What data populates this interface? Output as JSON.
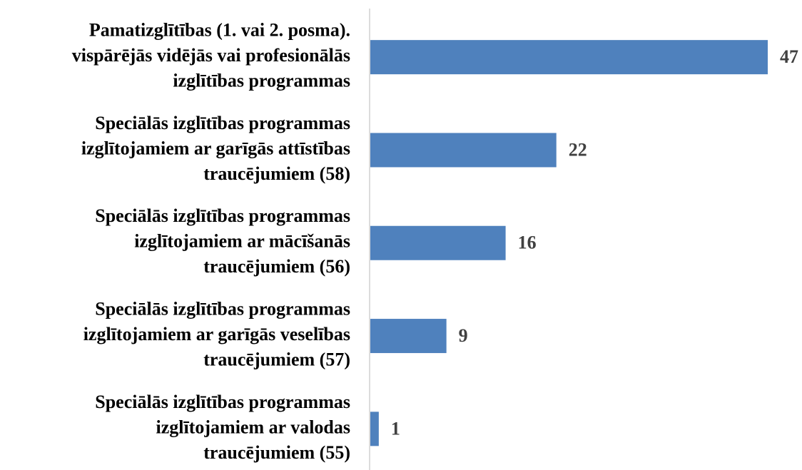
{
  "chart_data": {
    "type": "bar",
    "orientation": "horizontal",
    "categories": [
      [
        "Pamatizglītības (1. vai 2. posma).",
        "vispārējās vidējās vai profesionālās",
        "izglītības programmas"
      ],
      [
        "Speciālās izglītības programmas",
        "izglītojamiem ar garīgās attīstības",
        "traucējumiem (58)"
      ],
      [
        "Speciālās izglītības programmas",
        "izglītojamiem ar mācīšanās",
        "traucējumiem (56)"
      ],
      [
        "Speciālās izglītības programmas",
        "izglītojamiem ar garīgās veselības",
        "traucējumiem (57)"
      ],
      [
        "Speciālās izglītības programmas",
        "izglītojamiem ar valodas",
        "traucējumiem (55)"
      ]
    ],
    "values": [
      47,
      22,
      16,
      9,
      1
    ],
    "color": "#4f81bd",
    "xlim": [
      0,
      50
    ]
  }
}
